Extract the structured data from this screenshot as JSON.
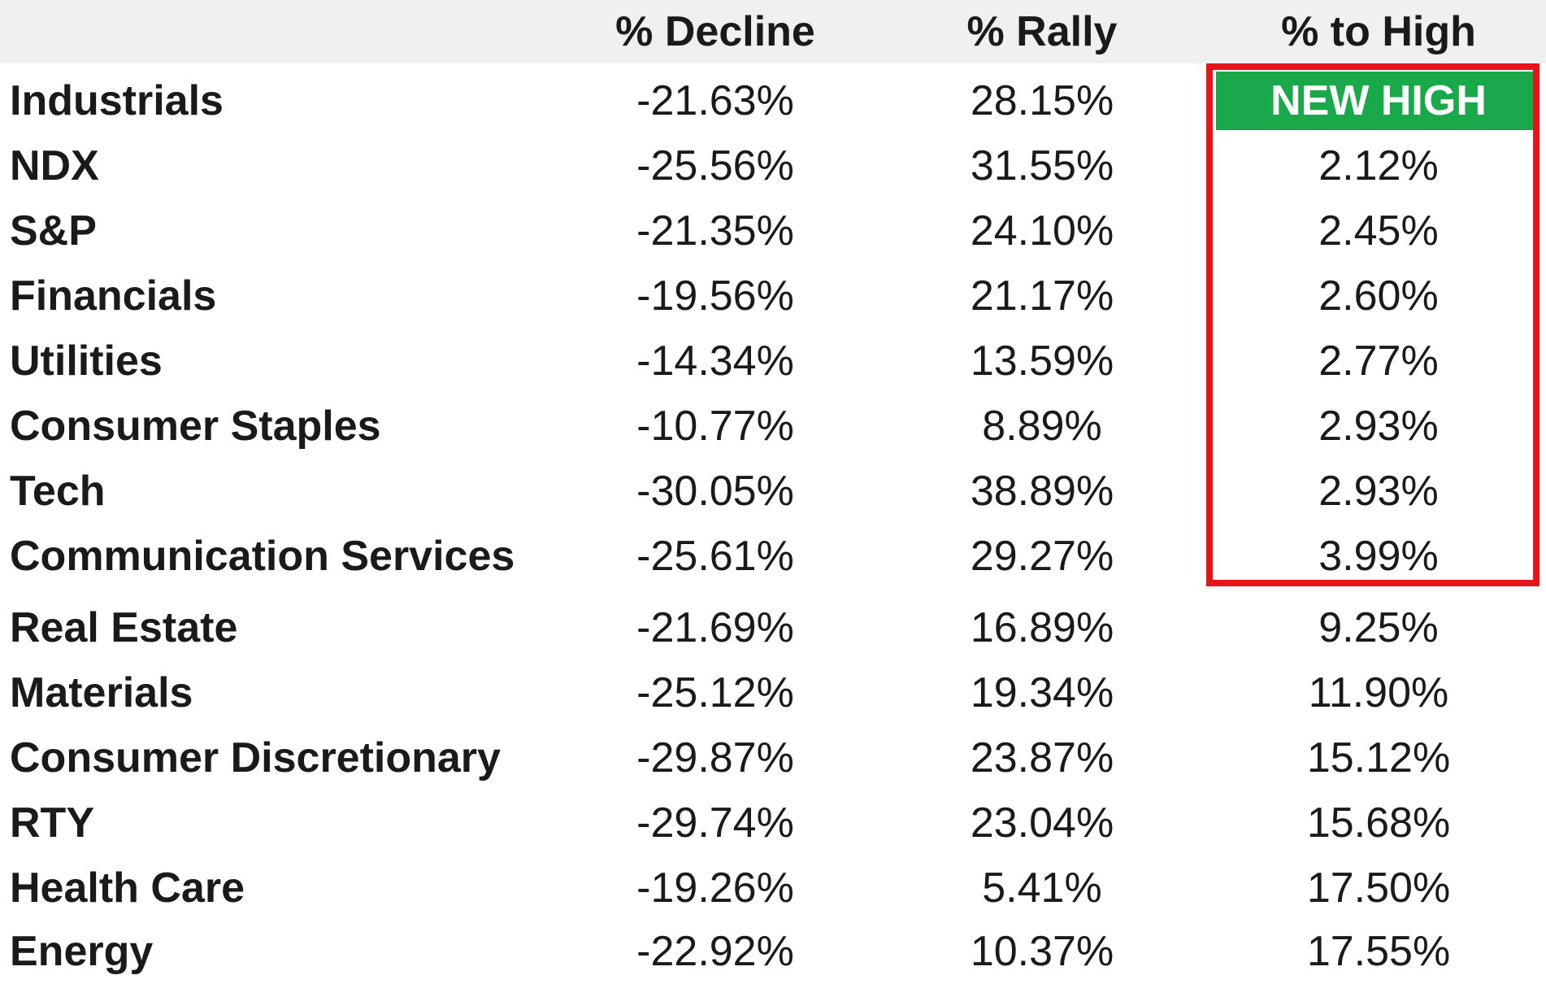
{
  "table": {
    "headers": {
      "name": "",
      "decline": "% Decline",
      "rally": "% Rally",
      "to_high": "% to High"
    },
    "rows": [
      {
        "name": "Industrials",
        "decline": "-21.63%",
        "rally": "28.15%",
        "to_high": "NEW HIGH"
      },
      {
        "name": "NDX",
        "decline": "-25.56%",
        "rally": "31.55%",
        "to_high": "2.12%"
      },
      {
        "name": "S&P",
        "decline": "-21.35%",
        "rally": "24.10%",
        "to_high": "2.45%"
      },
      {
        "name": "Financials",
        "decline": "-19.56%",
        "rally": "21.17%",
        "to_high": "2.60%"
      },
      {
        "name": "Utilities",
        "decline": "-14.34%",
        "rally": "13.59%",
        "to_high": "2.77%"
      },
      {
        "name": "Consumer Staples",
        "decline": "-10.77%",
        "rally": "8.89%",
        "to_high": "2.93%"
      },
      {
        "name": "Tech",
        "decline": "-30.05%",
        "rally": "38.89%",
        "to_high": "2.93%"
      },
      {
        "name": "Communication Services",
        "decline": "-25.61%",
        "rally": "29.27%",
        "to_high": "3.99%"
      },
      {
        "name": "Real Estate",
        "decline": "-21.69%",
        "rally": "16.89%",
        "to_high": "9.25%"
      },
      {
        "name": "Materials",
        "decline": "-25.12%",
        "rally": "19.34%",
        "to_high": "11.90%"
      },
      {
        "name": "Consumer Discretionary",
        "decline": "-29.87%",
        "rally": "23.87%",
        "to_high": "15.12%"
      },
      {
        "name": "RTY",
        "decline": "-29.74%",
        "rally": "23.04%",
        "to_high": "15.68%"
      },
      {
        "name": "Health Care",
        "decline": "-19.26%",
        "rally": "5.41%",
        "to_high": "17.50%"
      },
      {
        "name": "Energy",
        "decline": "-22.92%",
        "rally": "10.37%",
        "to_high": "17.55%"
      }
    ]
  },
  "colors": {
    "header_background": "#f0f0f0",
    "new_high_fill": "#19a84a",
    "new_high_text": "#ffffff",
    "highlight_border": "#e8141c",
    "text": "#1a1a1a"
  }
}
